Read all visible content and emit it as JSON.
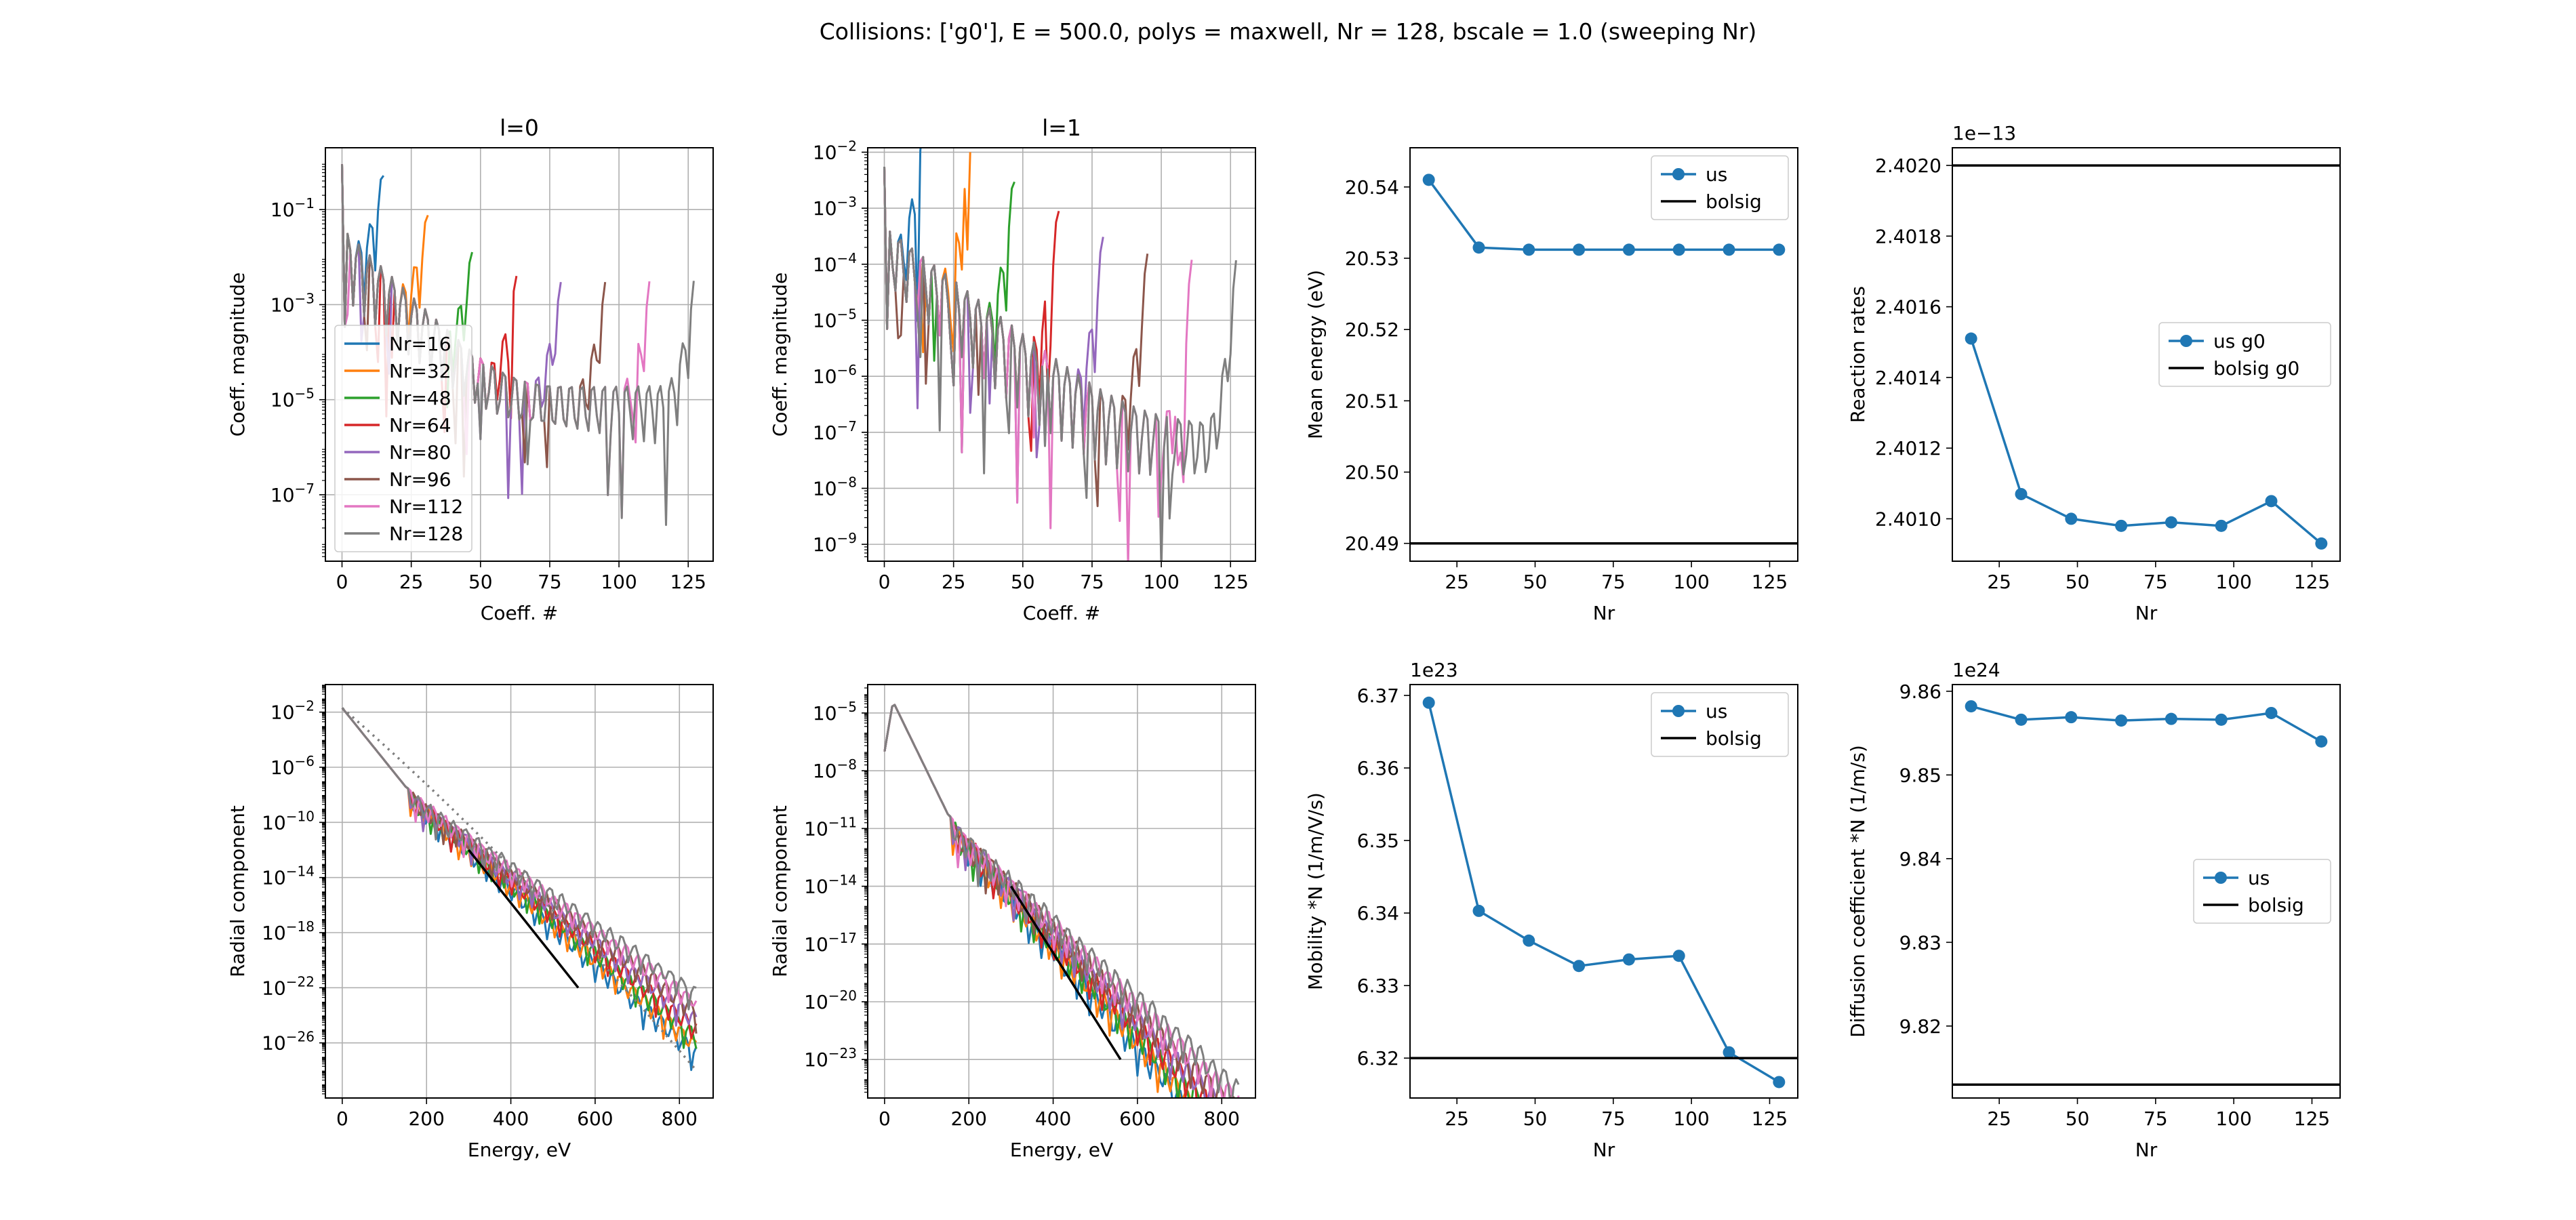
{
  "suptitle": "Collisions: ['g0'], E = 500.0, polys = maxwell, Nr = 128, bscale = 1.0 (sweeping Nr)",
  "colors": {
    "tab10": [
      "#1f77b4",
      "#ff7f0e",
      "#2ca02c",
      "#d62728",
      "#9467bd",
      "#8c564b",
      "#e377c2",
      "#7f7f7f"
    ],
    "us": "#1f77b4",
    "bolsig": "#000000",
    "grid": "#b0b0b0"
  },
  "chart_data": [
    {
      "id": "coef_l0",
      "type": "line",
      "title": "l=0",
      "xlabel": "Coeff. #",
      "ylabel": "Coeff. magnitude",
      "yscale": "log",
      "xlim": [
        -6,
        134
      ],
      "ylim": [
        4e-09,
        2
      ],
      "xticks": [
        0,
        25,
        50,
        75,
        100,
        125
      ],
      "yticks": [
        {
          "v": 0.1,
          "label": "10^-1"
        },
        {
          "v": 0.001,
          "label": "10^-3"
        },
        {
          "v": 1e-05,
          "label": "10^-5"
        },
        {
          "v": 1e-07,
          "label": "10^-7"
        }
      ],
      "grid": true,
      "legend": {
        "position": "lower-left",
        "entries": [
          "Nr=16",
          "Nr=32",
          "Nr=48",
          "Nr=64",
          "Nr=80",
          "Nr=96",
          "Nr=112",
          "Nr=128"
        ]
      },
      "series": [
        {
          "name": "Nr=16",
          "n": 16
        },
        {
          "name": "Nr=32",
          "n": 32
        },
        {
          "name": "Nr=48",
          "n": 48
        },
        {
          "name": "Nr=64",
          "n": 64
        },
        {
          "name": "Nr=80",
          "n": 80
        },
        {
          "name": "Nr=96",
          "n": 96
        },
        {
          "name": "Nr=112",
          "n": 112
        },
        {
          "name": "Nr=128",
          "n": 128
        }
      ]
    },
    {
      "id": "coef_l1",
      "type": "line",
      "title": "l=1",
      "xlabel": "Coeff. #",
      "ylabel": "Coeff. magnitude",
      "yscale": "log",
      "xlim": [
        -6,
        134
      ],
      "ylim": [
        5e-10,
        0.012
      ],
      "xticks": [
        0,
        25,
        50,
        75,
        100,
        125
      ],
      "yticks": [
        {
          "v": 0.01,
          "label": "10^-2"
        },
        {
          "v": 0.001,
          "label": "10^-3"
        },
        {
          "v": 0.0001,
          "label": "10^-4"
        },
        {
          "v": 1e-05,
          "label": "10^-5"
        },
        {
          "v": 1e-06,
          "label": "10^-6"
        },
        {
          "v": 1e-07,
          "label": "10^-7"
        },
        {
          "v": 1e-08,
          "label": "10^-8"
        },
        {
          "v": 1e-09,
          "label": "10^-9"
        }
      ],
      "grid": true,
      "series": [
        {
          "name": "Nr=16",
          "n": 16
        },
        {
          "name": "Nr=32",
          "n": 32
        },
        {
          "name": "Nr=48",
          "n": 48
        },
        {
          "name": "Nr=64",
          "n": 64
        },
        {
          "name": "Nr=80",
          "n": 80
        },
        {
          "name": "Nr=96",
          "n": 96
        },
        {
          "name": "Nr=112",
          "n": 112
        },
        {
          "name": "Nr=128",
          "n": 128
        }
      ]
    },
    {
      "id": "mean_energy",
      "type": "line",
      "xlabel": "Nr",
      "ylabel": "Mean energy (eV)",
      "xlim": [
        10,
        134
      ],
      "ylim": [
        20.4875,
        20.5455
      ],
      "xticks": [
        25,
        50,
        75,
        100,
        125
      ],
      "yticks": [
        {
          "v": 20.49,
          "label": "20.49"
        },
        {
          "v": 20.5,
          "label": "20.50"
        },
        {
          "v": 20.51,
          "label": "20.51"
        },
        {
          "v": 20.52,
          "label": "20.52"
        },
        {
          "v": 20.53,
          "label": "20.53"
        },
        {
          "v": 20.54,
          "label": "20.54"
        }
      ],
      "grid": false,
      "legend": {
        "position": "top-right",
        "entries": [
          "us",
          "bolsig"
        ]
      },
      "x": [
        16,
        32,
        48,
        64,
        80,
        96,
        112,
        128
      ],
      "series": [
        {
          "name": "us",
          "values": [
            20.541,
            20.5315,
            20.5312,
            20.5312,
            20.5312,
            20.5312,
            20.5312,
            20.5312
          ]
        }
      ],
      "hline": {
        "name": "bolsig",
        "value": 20.49
      }
    },
    {
      "id": "reaction_rates",
      "type": "line",
      "xlabel": "Nr",
      "ylabel": "Reaction rates",
      "offset": "1e−13",
      "xlim": [
        10,
        134
      ],
      "ylim": [
        2.40088,
        2.40205
      ],
      "xticks": [
        25,
        50,
        75,
        100,
        125
      ],
      "yticks": [
        {
          "v": 2.401,
          "label": "2.4010"
        },
        {
          "v": 2.4012,
          "label": "2.4012"
        },
        {
          "v": 2.4014,
          "label": "2.4014"
        },
        {
          "v": 2.4016,
          "label": "2.4016"
        },
        {
          "v": 2.4018,
          "label": "2.4018"
        },
        {
          "v": 2.402,
          "label": "2.4020"
        }
      ],
      "grid": false,
      "legend": {
        "position": "center-right",
        "entries": [
          "us g0",
          "bolsig g0"
        ]
      },
      "x": [
        16,
        32,
        48,
        64,
        80,
        96,
        112,
        128
      ],
      "series": [
        {
          "name": "us g0",
          "values": [
            2.40151,
            2.40107,
            2.401,
            2.40098,
            2.40099,
            2.40098,
            2.40105,
            2.40093
          ]
        }
      ],
      "hline": {
        "name": "bolsig g0",
        "value": 2.402
      }
    },
    {
      "id": "radial_l0",
      "type": "line",
      "xlabel": "Energy, eV",
      "ylabel": "Radial component",
      "yscale": "log",
      "xlim": [
        -40,
        880
      ],
      "ylim": [
        1e-30,
        1
      ],
      "xticks": [
        0,
        200,
        400,
        600,
        800
      ],
      "yticks": [
        {
          "v": 0.01,
          "label": "10^-2"
        },
        {
          "v": 1e-06,
          "label": "10^-6"
        },
        {
          "v": 1e-10,
          "label": "10^-10"
        },
        {
          "v": 1e-14,
          "label": "10^-14"
        },
        {
          "v": 1e-18,
          "label": "10^-18"
        },
        {
          "v": 1e-22,
          "label": "10^-22"
        },
        {
          "v": 1e-26,
          "label": "10^-26"
        }
      ],
      "grid": true,
      "bolsig_line": {
        "x": [
          300,
          560
        ],
        "y": [
          1e-12,
          1e-22
        ]
      },
      "dotted_curve": {
        "x0": 0,
        "y0": 0.02,
        "x1": 840,
        "y1": 1e-28
      }
    },
    {
      "id": "radial_l1",
      "type": "line",
      "xlabel": "Energy, eV",
      "ylabel": "Radial component",
      "yscale": "log",
      "xlim": [
        -40,
        880
      ],
      "ylim": [
        1e-25,
        0.0003
      ],
      "xticks": [
        0,
        200,
        400,
        600,
        800
      ],
      "yticks": [
        {
          "v": 1e-05,
          "label": "10^-5"
        },
        {
          "v": 1e-08,
          "label": "10^-8"
        },
        {
          "v": 1e-11,
          "label": "10^-11"
        },
        {
          "v": 1e-14,
          "label": "10^-14"
        },
        {
          "v": 1e-17,
          "label": "10^-17"
        },
        {
          "v": 1e-20,
          "label": "10^-20"
        },
        {
          "v": 1e-23,
          "label": "10^-23"
        }
      ],
      "grid": true,
      "bolsig_line": {
        "x": [
          300,
          560
        ],
        "y": [
          1e-14,
          1e-23
        ]
      }
    },
    {
      "id": "mobility",
      "type": "line",
      "xlabel": "Nr",
      "ylabel": "Mobility *N (1/m/V/s)",
      "offset": "1e23",
      "xlim": [
        10,
        134
      ],
      "ylim": [
        6.3145,
        6.3715
      ],
      "xticks": [
        25,
        50,
        75,
        100,
        125
      ],
      "yticks": [
        {
          "v": 6.32,
          "label": "6.32"
        },
        {
          "v": 6.33,
          "label": "6.33"
        },
        {
          "v": 6.34,
          "label": "6.34"
        },
        {
          "v": 6.35,
          "label": "6.35"
        },
        {
          "v": 6.36,
          "label": "6.36"
        },
        {
          "v": 6.37,
          "label": "6.37"
        }
      ],
      "grid": false,
      "legend": {
        "position": "top-right",
        "entries": [
          "us",
          "bolsig"
        ]
      },
      "x": [
        16,
        32,
        48,
        64,
        80,
        96,
        112,
        128
      ],
      "series": [
        {
          "name": "us",
          "values": [
            6.369,
            6.3403,
            6.3362,
            6.3327,
            6.3336,
            6.3341,
            6.3208,
            6.3167
          ]
        }
      ],
      "hline": {
        "name": "bolsig",
        "value": 6.32
      }
    },
    {
      "id": "diffusion",
      "type": "line",
      "xlabel": "Nr",
      "ylabel": "Diffusion coefficient *N (1/m/s)",
      "offset": "1e24",
      "xlim": [
        10,
        134
      ],
      "ylim": [
        9.8114,
        9.8608
      ],
      "xticks": [
        25,
        50,
        75,
        100,
        125
      ],
      "yticks": [
        {
          "v": 9.82,
          "label": "9.82"
        },
        {
          "v": 9.83,
          "label": "9.83"
        },
        {
          "v": 9.84,
          "label": "9.84"
        },
        {
          "v": 9.85,
          "label": "9.85"
        },
        {
          "v": 9.86,
          "label": "9.86"
        }
      ],
      "grid": false,
      "legend": {
        "position": "center-right",
        "entries": [
          "us",
          "bolsig"
        ]
      },
      "x": [
        16,
        32,
        48,
        64,
        80,
        96,
        112,
        128
      ],
      "series": [
        {
          "name": "us",
          "values": [
            9.8582,
            9.8566,
            9.8569,
            9.8565,
            9.8567,
            9.8566,
            9.8574,
            9.854
          ]
        }
      ],
      "hline": {
        "name": "bolsig",
        "value": 9.813
      }
    }
  ]
}
